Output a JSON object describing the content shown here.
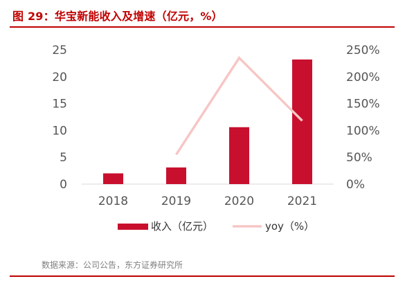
{
  "figure": {
    "title": "图 29：华宝新能收入及增速（亿元，%）",
    "source": "数据来源：公司公告，东方证券研究所"
  },
  "colors": {
    "accent": "#c00000",
    "bar": "#c8102e",
    "line": "#f6c7c5",
    "axis_text": "#555555",
    "source_text": "#7f7f7f"
  },
  "chart_data": {
    "type": "bar",
    "categories": [
      "2018",
      "2019",
      "2020",
      "2021"
    ],
    "series": [
      {
        "name": "收入（亿元）",
        "type": "bar",
        "axis": "left",
        "values": [
          2.0,
          3.1,
          10.6,
          23.2
        ]
      },
      {
        "name": "yoy（%）",
        "type": "line",
        "axis": "right",
        "values": [
          null,
          55,
          235,
          118
        ]
      }
    ],
    "ylim": [
      0,
      25
    ],
    "yticks": [
      "0",
      "5",
      "10",
      "15",
      "20",
      "25"
    ],
    "y2lim": [
      0,
      250
    ],
    "y2ticks": [
      "0%",
      "50%",
      "100%",
      "150%",
      "200%",
      "250%"
    ],
    "legend_position": "bottom",
    "grid": false
  }
}
